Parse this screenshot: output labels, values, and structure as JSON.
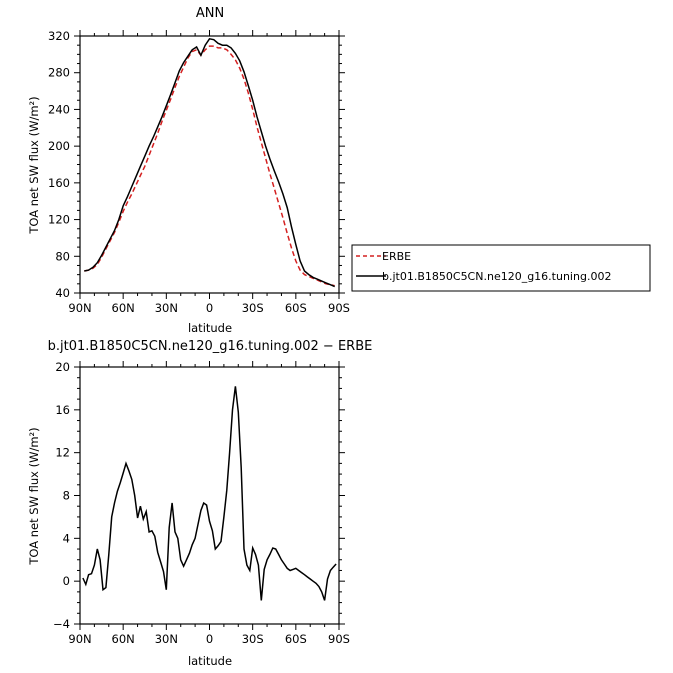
{
  "chart_data": [
    {
      "type": "line",
      "title": "ANN",
      "xlabel": "latitude",
      "ylabel": "TOA net SW flux (W/m²)",
      "xlim": [
        90,
        -90
      ],
      "ylim": [
        40,
        320
      ],
      "xticks": [
        "90N",
        "60N",
        "30N",
        "0",
        "30S",
        "60S",
        "90S"
      ],
      "xtick_values": [
        90,
        60,
        30,
        0,
        -30,
        -60,
        -90
      ],
      "yticks": [
        40,
        80,
        120,
        160,
        200,
        240,
        280,
        320
      ],
      "legend_position": "right",
      "grid": false,
      "x": [
        87,
        84,
        81,
        78,
        75,
        72,
        69,
        66,
        63,
        60,
        57,
        54,
        51,
        48,
        45,
        42,
        39,
        36,
        33,
        30,
        27,
        24,
        21,
        18,
        15,
        12,
        9,
        6,
        3,
        0,
        -3,
        -6,
        -9,
        -12,
        -15,
        -18,
        -21,
        -24,
        -27,
        -30,
        -33,
        -36,
        -39,
        -42,
        -45,
        -48,
        -51,
        -54,
        -57,
        -60,
        -63,
        -66,
        -69,
        -72,
        -75,
        -78,
        -81,
        -84,
        -87
      ],
      "series": [
        {
          "name": "ERBE",
          "color": "#d42020",
          "dash": "dashed",
          "values": [
            64,
            65,
            67,
            71,
            79,
            88,
            97,
            106,
            117,
            129,
            139,
            148,
            158,
            168,
            178,
            190,
            202,
            214,
            227,
            239,
            251,
            264,
            276,
            286,
            296,
            303,
            305,
            299,
            305,
            309,
            309,
            307,
            307,
            305,
            300,
            294,
            285,
            273,
            258,
            240,
            221,
            204,
            187,
            170,
            154,
            138,
            122,
            105,
            89,
            75,
            65,
            60,
            58,
            56,
            54,
            52,
            50,
            49,
            48
          ],
          "color_label": "red-dashed"
        },
        {
          "name": "b.jt01.B1850C5CN.ne120_g16.tuning.002",
          "color": "#000000",
          "dash": "solid",
          "values": [
            64,
            65,
            68,
            73,
            81,
            90,
            99,
            108,
            120,
            135,
            145,
            156,
            167,
            178,
            189,
            200,
            210,
            221,
            232,
            244,
            256,
            269,
            282,
            291,
            298,
            305,
            308,
            299,
            310,
            317,
            316,
            312,
            310,
            310,
            307,
            301,
            293,
            281,
            266,
            250,
            232,
            216,
            200,
            186,
            173,
            161,
            148,
            133,
            112,
            93,
            75,
            64,
            60,
            57,
            55,
            53,
            51,
            49,
            47
          ]
        }
      ]
    },
    {
      "type": "line",
      "title": "b.jt01.B1850C5CN.ne120_g16.tuning.002 − ERBE",
      "xlabel": "latitude",
      "ylabel": "TOA net SW flux (W/m²)",
      "xlim": [
        90,
        -90
      ],
      "ylim": [
        -4,
        20
      ],
      "xticks": [
        "90N",
        "60N",
        "30N",
        "0",
        "30S",
        "60S",
        "90S"
      ],
      "xtick_values": [
        90,
        60,
        30,
        0,
        -30,
        -60,
        -90
      ],
      "yticks": [
        -4,
        0,
        4,
        8,
        12,
        16,
        20
      ],
      "grid": false,
      "x": [
        88,
        86,
        84,
        82,
        80,
        78,
        76,
        74,
        72,
        70,
        68,
        66,
        64,
        62,
        60,
        58,
        56,
        54,
        52,
        50,
        48,
        46,
        44,
        42,
        40,
        38,
        36,
        34,
        32,
        30,
        28,
        26,
        24,
        22,
        20,
        18,
        16,
        14,
        12,
        10,
        8,
        6,
        4,
        2,
        0,
        -2,
        -4,
        -6,
        -8,
        -10,
        -12,
        -14,
        -16,
        -18,
        -20,
        -22,
        -24,
        -26,
        -28,
        -30,
        -32,
        -34,
        -36,
        -38,
        -40,
        -42,
        -44,
        -46,
        -48,
        -50,
        -52,
        -54,
        -56,
        -58,
        -60,
        -62,
        -64,
        -66,
        -68,
        -70,
        -72,
        -74,
        -76,
        -78,
        -80,
        -82,
        -84,
        -86,
        -88
      ],
      "series": [
        {
          "name": "",
          "color": "#000000",
          "values": [
            0.3,
            -0.3,
            0.6,
            0.7,
            1.5,
            3.0,
            2.0,
            -0.8,
            -0.6,
            2.5,
            6.0,
            7.3,
            8.4,
            9.2,
            10.1,
            11.0,
            10.3,
            9.5,
            8.0,
            5.9,
            7.0,
            5.8,
            6.5,
            4.6,
            4.7,
            4.2,
            2.7,
            1.8,
            0.9,
            -0.8,
            5.0,
            7.3,
            4.6,
            4.0,
            2.0,
            1.4,
            2.0,
            2.6,
            3.4,
            4.0,
            5.3,
            6.6,
            7.3,
            7.1,
            5.6,
            4.7,
            3.0,
            3.3,
            3.7,
            6.0,
            8.5,
            12.0,
            16.0,
            18.2,
            15.8,
            10.6,
            3.0,
            1.5,
            1.0,
            3.1,
            2.5,
            1.5,
            -1.8,
            1.1,
            2.0,
            2.5,
            3.1,
            3.0,
            2.5,
            2.0,
            1.6,
            1.2,
            1.0,
            1.1,
            1.2,
            1.0,
            0.8,
            0.6,
            0.4,
            0.2,
            0.0,
            -0.2,
            -0.5,
            -1.0,
            -1.8,
            0.2,
            1.0,
            1.3,
            1.6
          ]
        }
      ]
    }
  ]
}
